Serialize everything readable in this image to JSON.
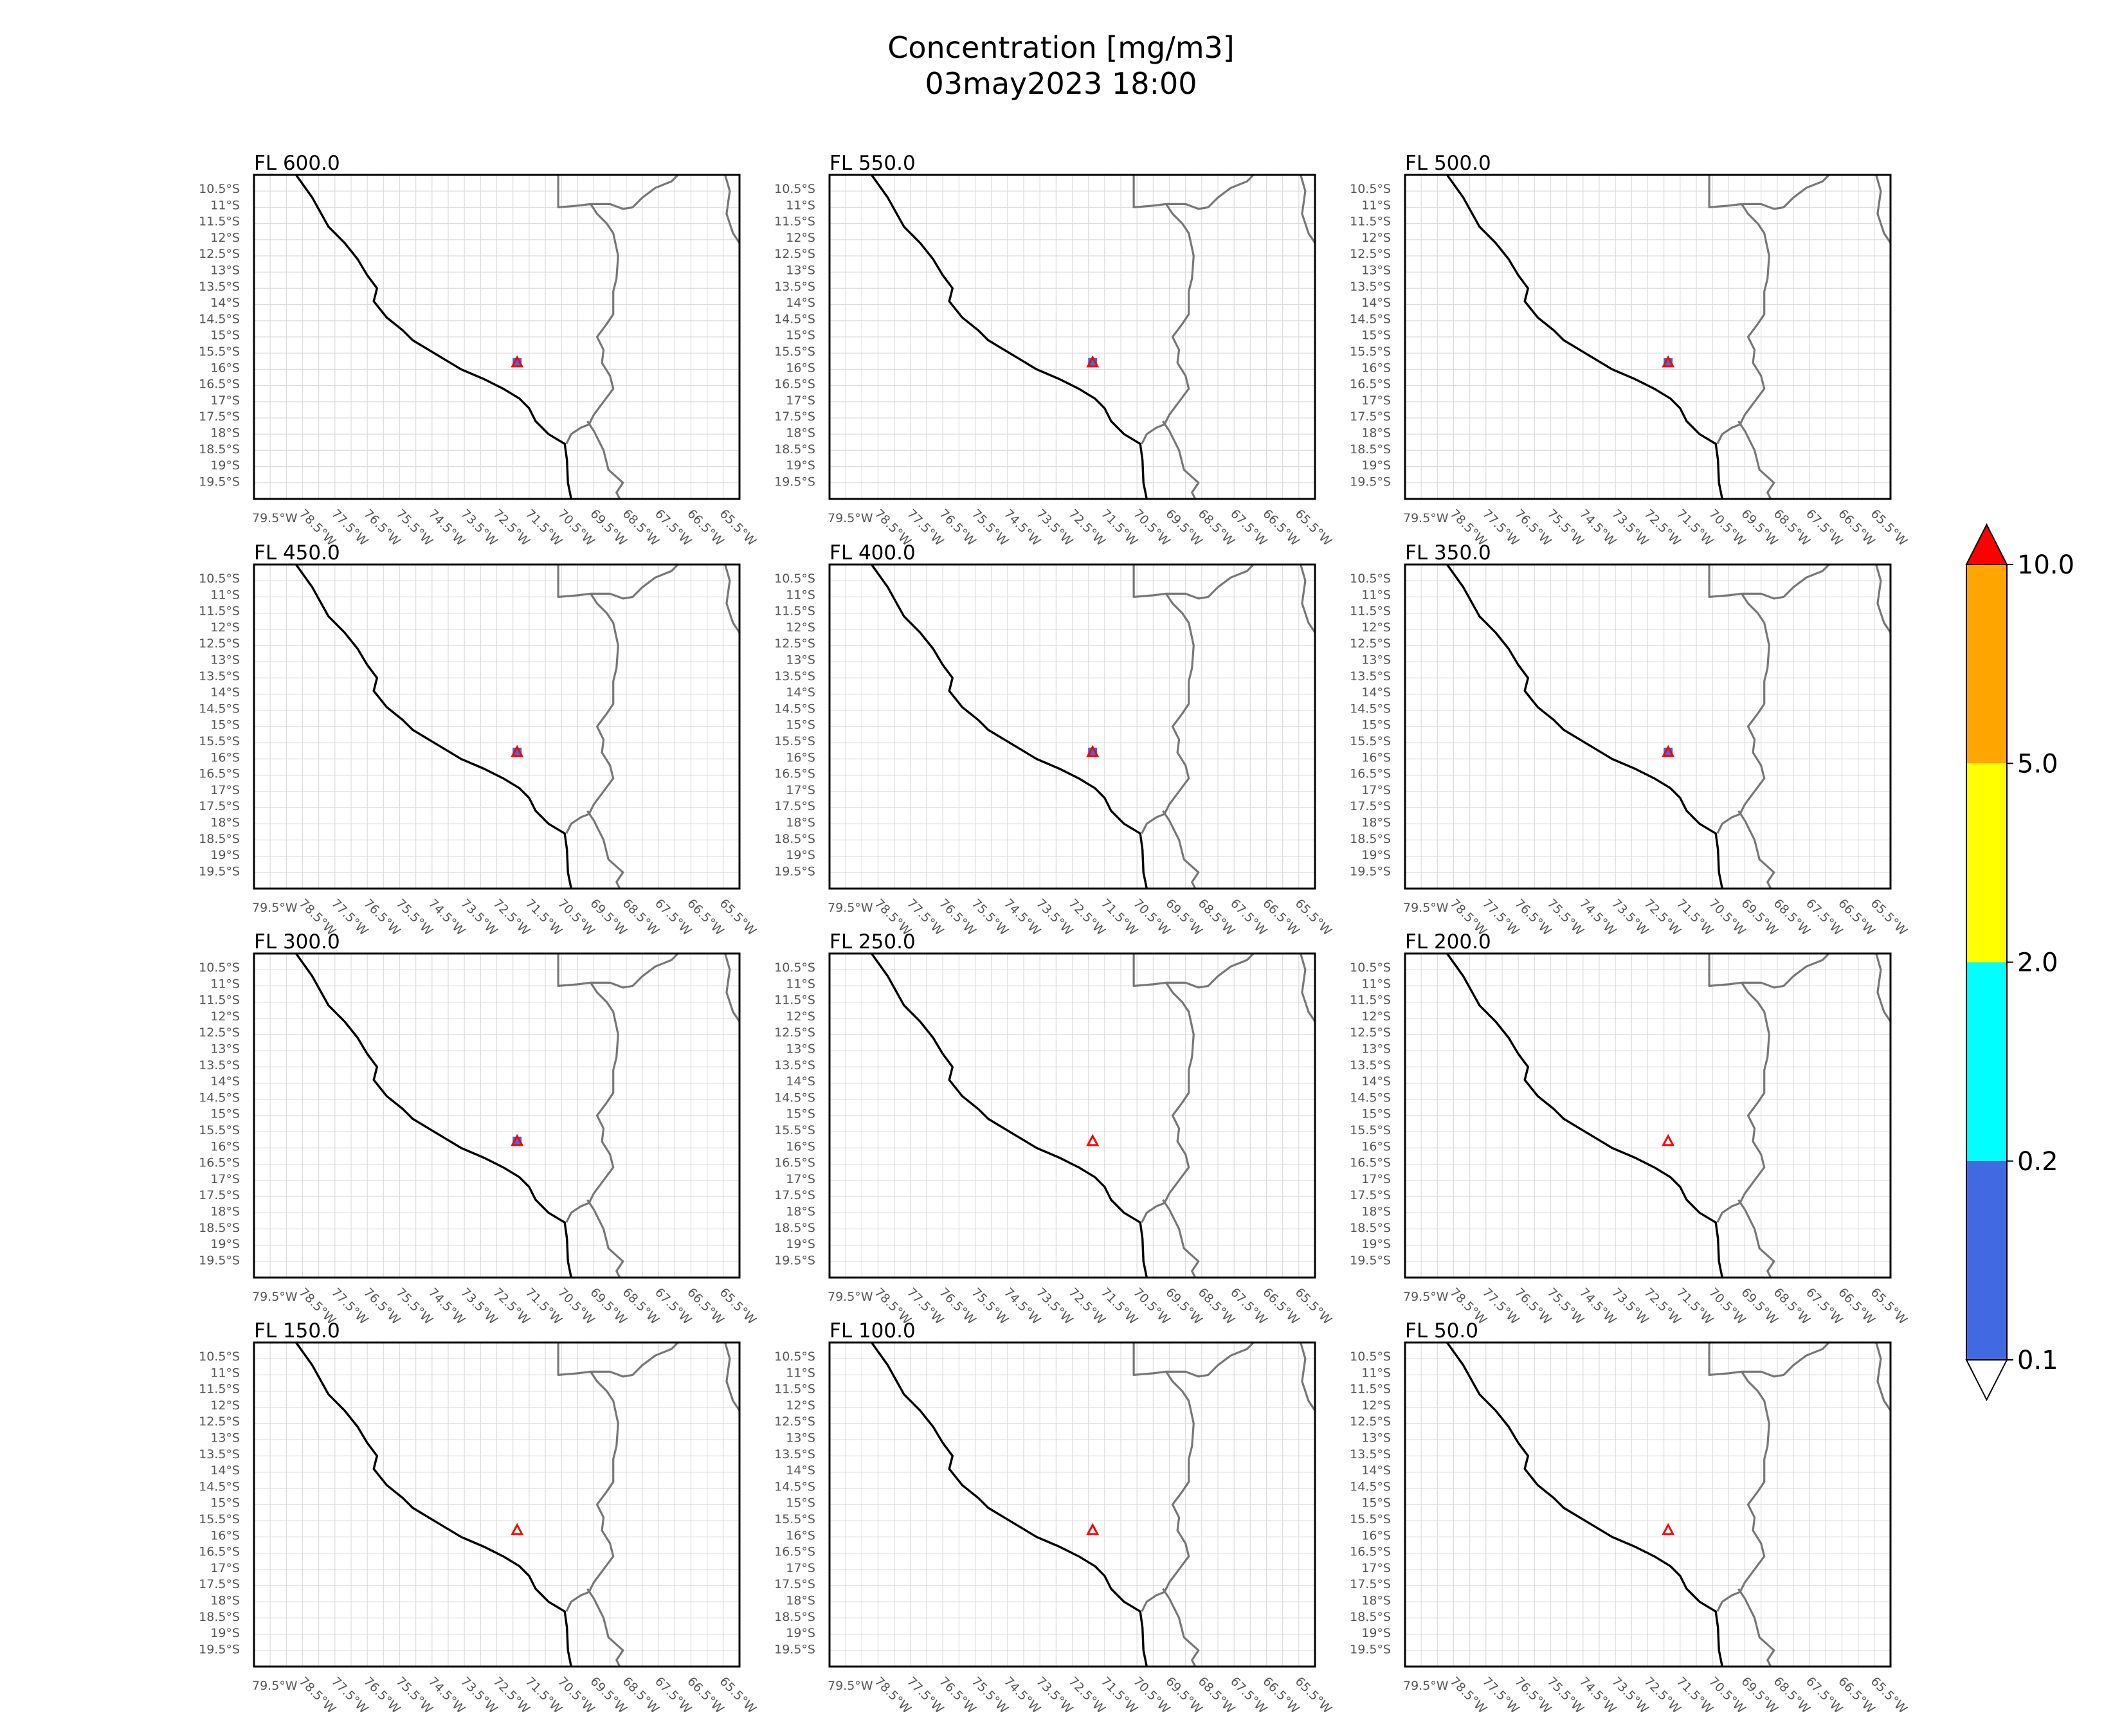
{
  "title": [
    "Concentration [mg/m3]",
    "03may2023 18:00"
  ],
  "panels": [
    {
      "label": "FL 600.0",
      "cloud": true
    },
    {
      "label": "FL 550.0",
      "cloud": true
    },
    {
      "label": "FL 500.0",
      "cloud": true
    },
    {
      "label": "FL 450.0",
      "cloud": true
    },
    {
      "label": "FL 400.0",
      "cloud": true
    },
    {
      "label": "FL 350.0",
      "cloud": true
    },
    {
      "label": "FL 300.0",
      "cloud": true
    },
    {
      "label": "FL 250.0",
      "cloud": false
    },
    {
      "label": "FL 200.0",
      "cloud": false
    },
    {
      "label": "FL 150.0",
      "cloud": false
    },
    {
      "label": "FL 100.0",
      "cloud": false
    },
    {
      "label": "FL 50.0",
      "cloud": false
    }
  ],
  "lon_ticks": [
    "79.5°W",
    "78.5°W",
    "77.5°W",
    "76.5°W",
    "75.5°W",
    "74.5°W",
    "73.5°W",
    "72.5°W",
    "71.5°W",
    "70.5°W",
    "69.5°W",
    "68.5°W",
    "67.5°W",
    "66.5°W",
    "65.5°W"
  ],
  "lat_ticks": [
    "10.5°S",
    "11°S",
    "11.5°S",
    "12°S",
    "12.5°S",
    "13°S",
    "13.5°S",
    "14°S",
    "14.5°S",
    "15°S",
    "15.5°S",
    "16°S",
    "16.5°S",
    "17°S",
    "17.5°S",
    "18°S",
    "18.5°S",
    "19°S",
    "19.5°S"
  ],
  "extent": {
    "lon_min": -80.0,
    "lon_max": -65.0,
    "lat_min": -20.0,
    "lat_max": -10.0
  },
  "volcano": {
    "lon": -71.87,
    "lat": -15.79
  },
  "colorbar": {
    "levels": [
      "0.1",
      "0.2",
      "2.0",
      "5.0",
      "10.0"
    ],
    "colors": [
      "#4169e1",
      "#00ffff",
      "#ffff00",
      "#ffa500"
    ],
    "over_color": "#ff0000",
    "under_color": "#ffffff"
  },
  "colors": {
    "coast": "#000000",
    "border": "#777777",
    "marker": "#ff0000",
    "cloud": "#4169e1"
  }
}
